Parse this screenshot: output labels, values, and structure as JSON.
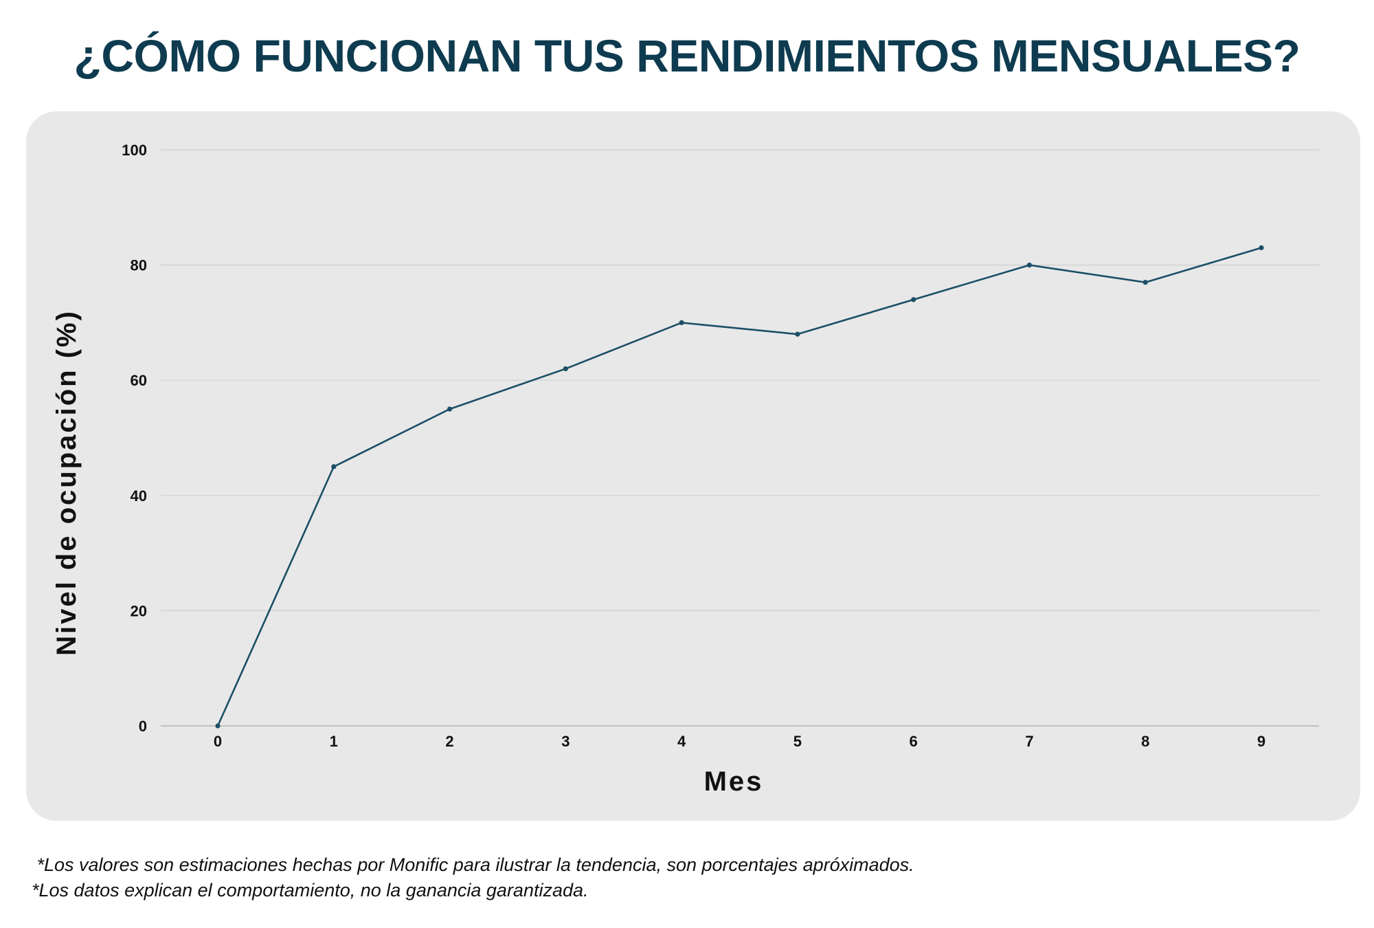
{
  "title": "¿CÓMO FUNCIONAN TUS RENDIMIENTOS MENSUALES?",
  "colors": {
    "title": "#0e3b4f",
    "line": "#1b4f66",
    "card": "#e8e8e8",
    "grid": "#cfcfcf",
    "axis": "#b4b4b4",
    "text": "#111111"
  },
  "chart_data": {
    "type": "line",
    "title": "¿CÓMO FUNCIONAN TUS RENDIMIENTOS MENSUALES?",
    "xlabel": "Mes",
    "ylabel": "Nivel de ocupación (%)",
    "x": [
      0,
      1,
      2,
      3,
      4,
      5,
      6,
      7,
      8,
      9
    ],
    "x_tick_labels": [
      "0",
      "1",
      "2",
      "3",
      "4",
      "5",
      "6",
      "7",
      "8",
      "9"
    ],
    "y_ticks": [
      0,
      20,
      40,
      60,
      80,
      100
    ],
    "y_tick_labels": [
      "0",
      "20",
      "40",
      "60",
      "80",
      "100"
    ],
    "ylim": [
      0,
      100
    ],
    "xlim": [
      0,
      9
    ],
    "grid": true,
    "legend": false,
    "series": [
      {
        "values": [
          0,
          45,
          55,
          62,
          70,
          68,
          74,
          80,
          77,
          83
        ],
        "color": "#1b4f66",
        "markers": true
      }
    ]
  },
  "footnotes": [
    " *Los valores son estimaciones hechas por Monific para ilustrar la tendencia, son porcentajes apróximados.",
    "*Los datos explican el comportamiento, no la ganancia garantizada."
  ]
}
